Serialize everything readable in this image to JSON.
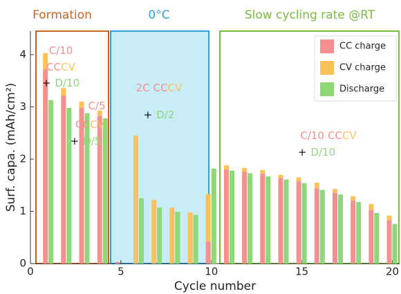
{
  "chart_data": {
    "type": "bar",
    "xlabel": "Cycle number",
    "ylabel": "Surf. capa. (mAh/cm²)",
    "x": [
      1,
      2,
      3,
      4,
      5,
      6,
      7,
      8,
      9,
      10,
      11,
      12,
      13,
      14,
      15,
      16,
      17,
      18,
      19,
      20
    ],
    "series": [
      {
        "name": "CC charge",
        "color": "#f4908f",
        "stack": "charge",
        "values": [
          3.72,
          3.22,
          2.98,
          2.83,
          0.03,
          0,
          0,
          0,
          0,
          0.42,
          1.8,
          1.76,
          1.72,
          1.64,
          1.58,
          1.44,
          1.35,
          1.21,
          1.03,
          0.83
        ]
      },
      {
        "name": "CV charge",
        "color": "#fcc25a",
        "stack": "charge",
        "values": [
          0.31,
          0.14,
          0.12,
          0.1,
          0,
          2.45,
          1.22,
          1.07,
          0.98,
          0.91,
          0.08,
          0.07,
          0.07,
          0.06,
          0.07,
          0.11,
          0.08,
          0.08,
          0.11,
          0.09
        ]
      },
      {
        "name": "Discharge",
        "color": "#8fd87a",
        "stack": "discharge",
        "values": [
          3.13,
          2.98,
          2.88,
          2.78,
          0,
          1.25,
          1.07,
          0.99,
          0.93,
          1.82,
          1.78,
          1.73,
          1.67,
          1.61,
          1.54,
          1.41,
          1.32,
          1.18,
          0.97,
          0.76
        ]
      }
    ],
    "xlim": [
      0,
      20.4
    ],
    "xticks": [
      0,
      5,
      10,
      15,
      20
    ],
    "ylim": [
      0,
      4.45
    ],
    "yticks": [
      0,
      1,
      2,
      3,
      4
    ],
    "legend": "upper right",
    "grid": false,
    "regions": [
      {
        "label": "Formation",
        "color": "#c8641e"
      },
      {
        "label": "0°C",
        "color": "#2aa3d6"
      },
      {
        "label": "Slow cycling rate @RT",
        "color": "#79bb3f"
      }
    ],
    "annotations": [
      {
        "rate": "C/10",
        "cc": "CC",
        "cv": "CV",
        "plus": "+",
        "discharge": "D/10"
      },
      {
        "rate": "C/5",
        "cc": "CC",
        "cv": "CV",
        "plus": "+",
        "discharge": "D/5"
      },
      {
        "rate": "2C",
        "cc": "CC",
        "cv": "CV",
        "plus": "+",
        "discharge": "D/2"
      },
      {
        "rate": "C/10",
        "cc": "CC",
        "cv": "CV",
        "plus": "+",
        "discharge": "D/10"
      }
    ]
  }
}
